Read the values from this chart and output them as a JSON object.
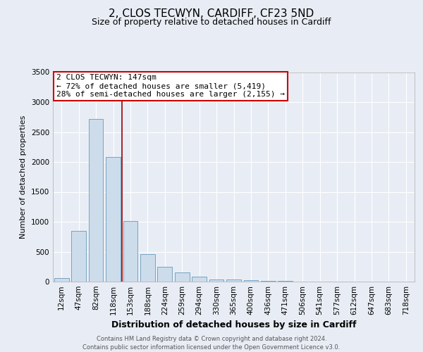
{
  "title_line1": "2, CLOS TECWYN, CARDIFF, CF23 5ND",
  "title_line2": "Size of property relative to detached houses in Cardiff",
  "xlabel": "Distribution of detached houses by size in Cardiff",
  "ylabel": "Number of detached properties",
  "categories": [
    "12sqm",
    "47sqm",
    "82sqm",
    "118sqm",
    "153sqm",
    "188sqm",
    "224sqm",
    "259sqm",
    "294sqm",
    "330sqm",
    "365sqm",
    "400sqm",
    "436sqm",
    "471sqm",
    "506sqm",
    "541sqm",
    "577sqm",
    "612sqm",
    "647sqm",
    "683sqm",
    "718sqm"
  ],
  "values": [
    60,
    850,
    2720,
    2080,
    1010,
    460,
    250,
    155,
    80,
    40,
    35,
    20,
    15,
    8,
    4,
    3,
    2,
    2,
    1,
    1,
    1
  ],
  "bar_color": "#cddceb",
  "bar_edgecolor": "#6699bb",
  "annotation_line1": "2 CLOS TECWYN: 147sqm",
  "annotation_line2": "← 72% of detached houses are smaller (5,419)",
  "annotation_line3": "28% of semi-detached houses are larger (2,155) →",
  "annotation_box_color": "#ffffff",
  "annotation_box_edgecolor": "#cc0000",
  "vline_color": "#990000",
  "vline_x": 3.5,
  "ylim": [
    0,
    3500
  ],
  "yticks": [
    0,
    500,
    1000,
    1500,
    2000,
    2500,
    3000,
    3500
  ],
  "background_color": "#e8edf5",
  "plot_bg_color": "#e8edf5",
  "grid_color": "#ffffff",
  "footer_text": "Contains HM Land Registry data © Crown copyright and database right 2024.\nContains public sector information licensed under the Open Government Licence v3.0.",
  "title_fontsize": 11,
  "subtitle_fontsize": 9,
  "xlabel_fontsize": 9,
  "ylabel_fontsize": 8,
  "tick_fontsize": 7.5,
  "annot_fontsize": 8
}
